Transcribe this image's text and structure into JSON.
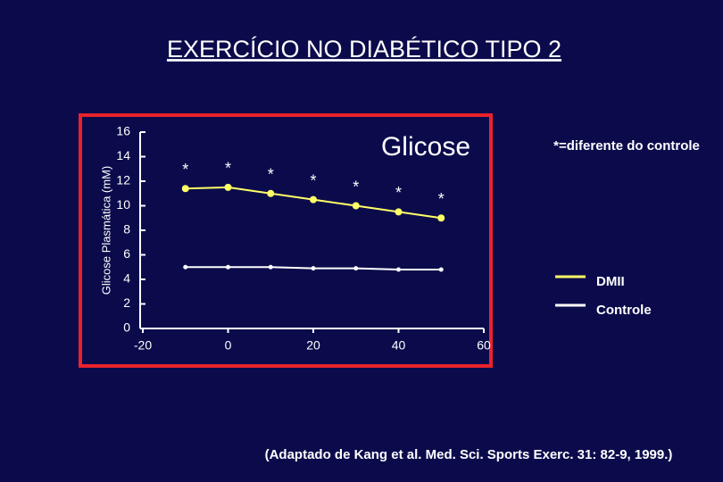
{
  "title": "EXERCÍCIO NO DIABÉTICO TIPO 2",
  "source_note": "(Adaptado de Kang et al. Med. Sci. Sports Exerc. 31: 82-9, 1999.)",
  "chart_data": {
    "type": "line",
    "subtitle": "Glicose",
    "annotation": "*=diferente do controle",
    "y_label": "Glicose Plasmática (mM)",
    "x": [
      -10,
      0,
      10,
      20,
      30,
      40,
      50
    ],
    "series": [
      {
        "name": "DMII",
        "color": "#ffff66",
        "values": [
          11.4,
          11.5,
          11.0,
          10.5,
          10.0,
          9.5,
          9.0
        ],
        "value_labels": [
          "*",
          "*",
          "*",
          "*",
          "*",
          "*",
          "*"
        ]
      },
      {
        "name": "Controle",
        "color": "#ffffff",
        "values": [
          5.0,
          5.0,
          5.0,
          4.9,
          4.9,
          4.8,
          4.8
        ]
      }
    ],
    "xlim": [
      -20,
      60
    ],
    "xticks": [
      -20,
      0,
      20,
      40,
      60
    ],
    "ylim": [
      0,
      16
    ],
    "yticks": [
      0,
      2,
      4,
      6,
      8,
      10,
      12,
      14,
      16
    ],
    "legend": "right",
    "grid": false
  }
}
